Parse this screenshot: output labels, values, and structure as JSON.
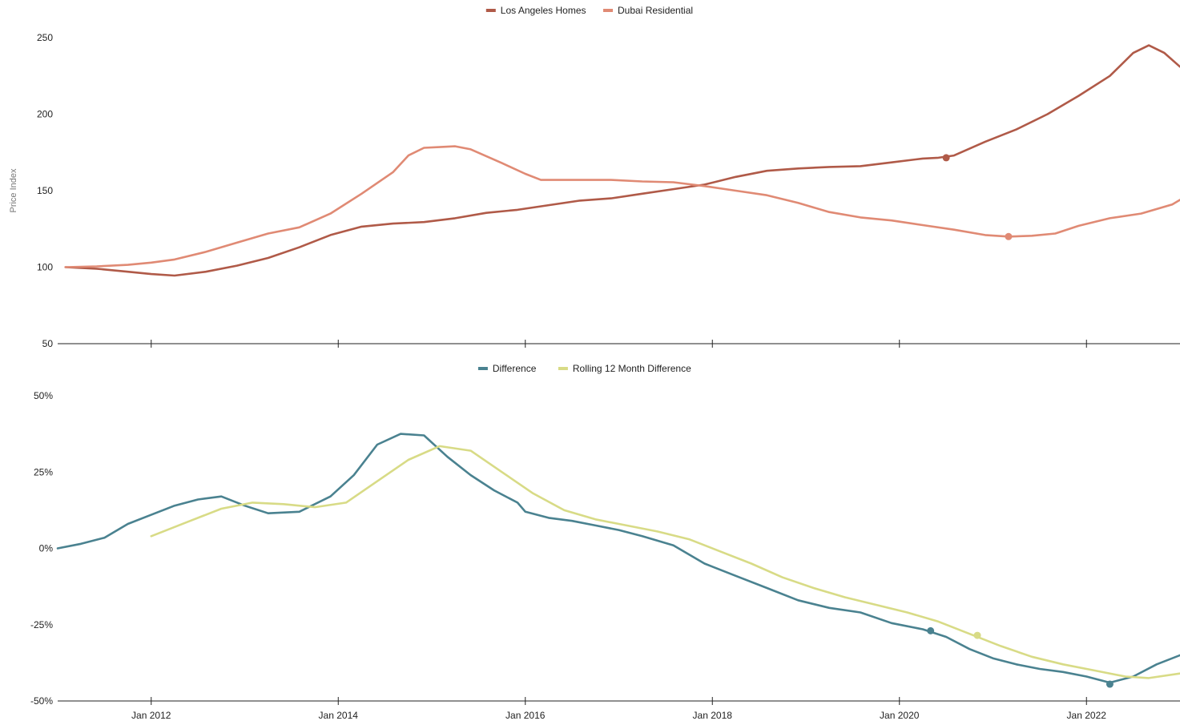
{
  "colors": {
    "la": "#b05a48",
    "dubai": "#e08a74",
    "difference": "#4a8290",
    "rolling": "#d8db86",
    "axis": "#222222",
    "label": "#777777"
  },
  "chart_data": [
    {
      "type": "line",
      "ylabel": "Price Index",
      "ylim": [
        50,
        250
      ],
      "yticks": [
        "250",
        "200",
        "150",
        "100",
        "50"
      ],
      "xlim": [
        "2011-01",
        "2023-01"
      ],
      "xticks": [
        "2012-01",
        "2014-01",
        "2016-01",
        "2018-01",
        "2020-01",
        "2022-01"
      ],
      "legend_position": "top-center",
      "series": [
        {
          "name": "Los Angeles Homes",
          "color_key": "la",
          "points": [
            [
              "2011-02",
              100
            ],
            [
              "2011-06",
              99
            ],
            [
              "2011-10",
              97
            ],
            [
              "2012-01",
              95.5
            ],
            [
              "2012-04",
              94.5
            ],
            [
              "2012-08",
              97
            ],
            [
              "2012-12",
              101
            ],
            [
              "2013-04",
              106
            ],
            [
              "2013-08",
              113
            ],
            [
              "2013-12",
              121
            ],
            [
              "2014-04",
              126.5
            ],
            [
              "2014-08",
              128.5
            ],
            [
              "2014-12",
              129.5
            ],
            [
              "2015-04",
              132
            ],
            [
              "2015-08",
              135.5
            ],
            [
              "2015-12",
              137.5
            ],
            [
              "2016-04",
              140.5
            ],
            [
              "2016-08",
              143.5
            ],
            [
              "2016-12",
              145
            ],
            [
              "2017-04",
              148
            ],
            [
              "2017-08",
              151
            ],
            [
              "2017-12",
              154
            ],
            [
              "2018-04",
              159
            ],
            [
              "2018-08",
              163
            ],
            [
              "2018-12",
              164.5
            ],
            [
              "2019-04",
              165.5
            ],
            [
              "2019-08",
              166
            ],
            [
              "2019-12",
              168.5
            ],
            [
              "2020-04",
              171
            ],
            [
              "2020-06",
              171.5
            ],
            [
              "2020-08",
              173
            ],
            [
              "2020-12",
              182
            ],
            [
              "2021-04",
              190
            ],
            [
              "2021-08",
              200
            ],
            [
              "2021-12",
              212
            ],
            [
              "2022-04",
              225
            ],
            [
              "2022-07",
              240
            ],
            [
              "2022-09",
              245
            ],
            [
              "2022-11",
              240
            ],
            [
              "2023-01",
              231
            ]
          ],
          "marker": [
            "2020-07",
            171.5
          ]
        },
        {
          "name": "Dubai Residential",
          "color_key": "dubai",
          "points": [
            [
              "2011-02",
              100
            ],
            [
              "2011-06",
              100.5
            ],
            [
              "2011-10",
              101.5
            ],
            [
              "2012-01",
              103
            ],
            [
              "2012-04",
              105
            ],
            [
              "2012-08",
              110
            ],
            [
              "2012-12",
              116
            ],
            [
              "2013-04",
              122
            ],
            [
              "2013-08",
              126
            ],
            [
              "2013-12",
              135
            ],
            [
              "2014-04",
              148
            ],
            [
              "2014-08",
              162
            ],
            [
              "2014-10",
              173
            ],
            [
              "2014-12",
              178
            ],
            [
              "2015-02",
              178.5
            ],
            [
              "2015-04",
              179
            ],
            [
              "2015-06",
              177
            ],
            [
              "2015-10",
              168
            ],
            [
              "2016-01",
              161
            ],
            [
              "2016-03",
              157
            ],
            [
              "2016-08",
              157
            ],
            [
              "2016-12",
              157
            ],
            [
              "2017-04",
              156
            ],
            [
              "2017-08",
              155.5
            ],
            [
              "2017-12",
              153
            ],
            [
              "2018-04",
              150
            ],
            [
              "2018-08",
              147
            ],
            [
              "2018-12",
              142
            ],
            [
              "2019-04",
              136
            ],
            [
              "2019-08",
              132.5
            ],
            [
              "2019-12",
              130.5
            ],
            [
              "2020-04",
              127.5
            ],
            [
              "2020-08",
              124.5
            ],
            [
              "2020-12",
              121
            ],
            [
              "2021-03",
              120
            ],
            [
              "2021-06",
              120.5
            ],
            [
              "2021-09",
              122
            ],
            [
              "2021-12",
              127
            ],
            [
              "2022-04",
              132
            ],
            [
              "2022-08",
              135
            ],
            [
              "2022-12",
              141
            ],
            [
              "2023-01",
              144
            ]
          ],
          "marker": [
            "2021-03",
            120
          ]
        }
      ]
    },
    {
      "type": "line",
      "ylim": [
        -50,
        50
      ],
      "yticks": [
        "50%",
        "25%",
        "0%",
        "-25%",
        "-50%"
      ],
      "xlim": [
        "2011-01",
        "2023-01"
      ],
      "xticks": [
        "2012-01",
        "2014-01",
        "2016-01",
        "2018-01",
        "2020-01",
        "2022-01"
      ],
      "xtick_labels": [
        "Jan 2012",
        "Jan 2014",
        "Jan 2016",
        "Jan 2018",
        "Jan 2020",
        "Jan 2022"
      ],
      "legend_position": "top-center",
      "series": [
        {
          "name": "Difference",
          "color_key": "difference",
          "points": [
            [
              "2011-01",
              0
            ],
            [
              "2011-04",
              1.5
            ],
            [
              "2011-07",
              3.5
            ],
            [
              "2011-10",
              8
            ],
            [
              "2012-01",
              11
            ],
            [
              "2012-04",
              14
            ],
            [
              "2012-07",
              16
            ],
            [
              "2012-10",
              17
            ],
            [
              "2013-01",
              14
            ],
            [
              "2013-04",
              11.5
            ],
            [
              "2013-08",
              12
            ],
            [
              "2013-12",
              17
            ],
            [
              "2014-03",
              24
            ],
            [
              "2014-06",
              34
            ],
            [
              "2014-09",
              37.5
            ],
            [
              "2014-12",
              37
            ],
            [
              "2015-03",
              30
            ],
            [
              "2015-06",
              24
            ],
            [
              "2015-09",
              19
            ],
            [
              "2015-12",
              15
            ],
            [
              "2016-01",
              12
            ],
            [
              "2016-04",
              10
            ],
            [
              "2016-07",
              9
            ],
            [
              "2016-10",
              7.5
            ],
            [
              "2017-01",
              6
            ],
            [
              "2017-04",
              4
            ],
            [
              "2017-08",
              1
            ],
            [
              "2017-12",
              -5
            ],
            [
              "2018-04",
              -9
            ],
            [
              "2018-08",
              -13
            ],
            [
              "2018-12",
              -17
            ],
            [
              "2019-04",
              -19.5
            ],
            [
              "2019-08",
              -21
            ],
            [
              "2019-12",
              -24.5
            ],
            [
              "2020-04",
              -26.5
            ],
            [
              "2020-07",
              -29
            ],
            [
              "2020-10",
              -33
            ],
            [
              "2021-01",
              -36
            ],
            [
              "2021-04",
              -38
            ],
            [
              "2021-07",
              -39.5
            ],
            [
              "2021-10",
              -40.5
            ],
            [
              "2022-01",
              -42
            ],
            [
              "2022-04",
              -44
            ],
            [
              "2022-07",
              -42
            ],
            [
              "2022-10",
              -38
            ],
            [
              "2023-01",
              -35
            ]
          ],
          "markers": [
            [
              "2020-05",
              -27
            ],
            [
              "2022-04",
              -44.5
            ]
          ]
        },
        {
          "name": "Rolling 12 Month Difference",
          "color_key": "rolling",
          "points": [
            [
              "2012-01",
              4
            ],
            [
              "2012-06",
              9
            ],
            [
              "2012-10",
              13
            ],
            [
              "2013-02",
              15
            ],
            [
              "2013-06",
              14.5
            ],
            [
              "2013-10",
              13.5
            ],
            [
              "2014-02",
              15
            ],
            [
              "2014-06",
              22
            ],
            [
              "2014-10",
              29
            ],
            [
              "2015-02",
              33.5
            ],
            [
              "2015-06",
              32
            ],
            [
              "2015-10",
              25
            ],
            [
              "2016-02",
              18
            ],
            [
              "2016-06",
              12.5
            ],
            [
              "2016-10",
              9.5
            ],
            [
              "2017-02",
              7.5
            ],
            [
              "2017-06",
              5.5
            ],
            [
              "2017-10",
              3
            ],
            [
              "2018-02",
              -1
            ],
            [
              "2018-06",
              -5
            ],
            [
              "2018-10",
              -9.5
            ],
            [
              "2019-02",
              -13
            ],
            [
              "2019-06",
              -16
            ],
            [
              "2019-10",
              -18.5
            ],
            [
              "2020-02",
              -21
            ],
            [
              "2020-06",
              -24
            ],
            [
              "2020-10",
              -28
            ],
            [
              "2021-02",
              -32
            ],
            [
              "2021-06",
              -35.5
            ],
            [
              "2021-10",
              -38
            ],
            [
              "2022-02",
              -40
            ],
            [
              "2022-06",
              -42
            ],
            [
              "2022-09",
              -42.5
            ],
            [
              "2023-01",
              -41
            ]
          ],
          "marker": [
            "2020-11",
            -28.5
          ]
        }
      ]
    }
  ]
}
